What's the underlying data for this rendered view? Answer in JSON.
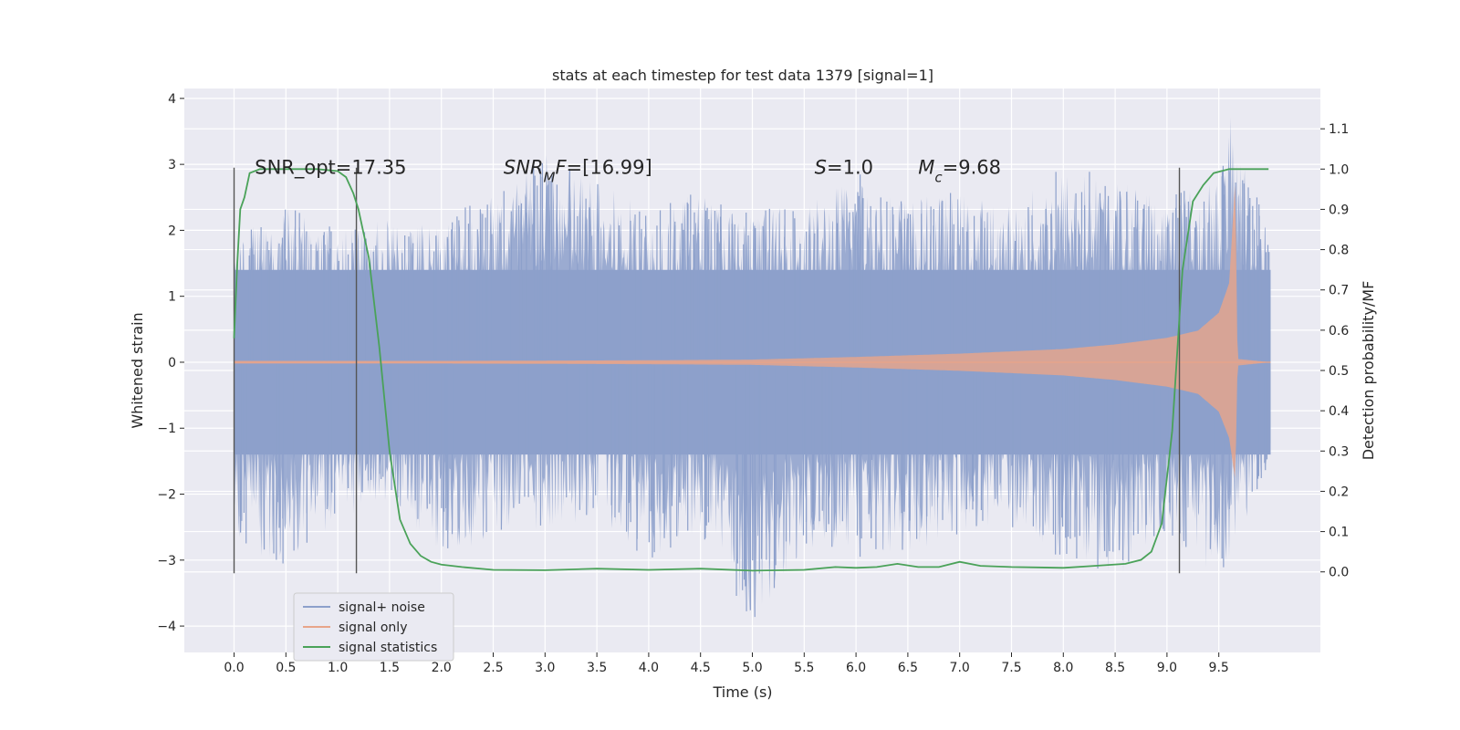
{
  "chart_data": {
    "type": "line",
    "title": "stats at each timestep for test data 1379 [signal=1]",
    "xlabel": "Time (s)",
    "ylabel": "Whitened strain",
    "y2label": "Detection probability/MF",
    "xlim": [
      -0.48,
      10.48
    ],
    "ylim": [
      -4.4,
      4.15
    ],
    "y2lim": [
      -0.2,
      1.2
    ],
    "x_ticks": [
      "0.0",
      "0.5",
      "1.0",
      "1.5",
      "2.0",
      "2.5",
      "3.0",
      "3.5",
      "4.0",
      "4.5",
      "5.0",
      "5.5",
      "6.0",
      "6.5",
      "7.0",
      "7.5",
      "8.0",
      "8.5",
      "9.0",
      "9.5"
    ],
    "y_ticks": [
      "−4",
      "−3",
      "−2",
      "−1",
      "0",
      "1",
      "2",
      "3",
      "4"
    ],
    "y2_ticks": [
      "0.0",
      "0.1",
      "0.2",
      "0.3",
      "0.4",
      "0.5",
      "0.6",
      "0.7",
      "0.8",
      "0.9",
      "1.0",
      "1.1"
    ],
    "grid": true,
    "legend_position": "lower-left",
    "colors": {
      "noise": "#8da0cb",
      "signal": "#e8a58a",
      "stats": "#4aa259",
      "vline": "#555555",
      "background": "#eaeaf2",
      "grid": "#ffffff"
    },
    "series": [
      {
        "name": "signal+ noise",
        "axis": "left",
        "x_range": [
          0.0,
          10.0
        ],
        "typical_band": [
          -1.4,
          1.4
        ],
        "envelope_upper": [
          [
            0.0,
            1.9
          ],
          [
            0.5,
            2.4
          ],
          [
            1.0,
            2.0
          ],
          [
            1.5,
            2.2
          ],
          [
            2.0,
            2.2
          ],
          [
            2.5,
            2.6
          ],
          [
            3.0,
            3.2
          ],
          [
            3.5,
            2.8
          ],
          [
            4.0,
            2.3
          ],
          [
            4.5,
            2.6
          ],
          [
            5.0,
            2.3
          ],
          [
            5.5,
            2.4
          ],
          [
            6.0,
            2.9
          ],
          [
            6.5,
            2.5
          ],
          [
            7.0,
            2.6
          ],
          [
            7.5,
            2.4
          ],
          [
            8.0,
            3.0
          ],
          [
            8.5,
            2.8
          ],
          [
            9.0,
            2.6
          ],
          [
            9.5,
            2.8
          ],
          [
            9.6,
            3.8
          ],
          [
            10.0,
            1.9
          ]
        ],
        "envelope_lower": [
          [
            0.0,
            -2.8
          ],
          [
            0.5,
            -3.1
          ],
          [
            1.0,
            -2.4
          ],
          [
            1.5,
            -2.2
          ],
          [
            2.0,
            -2.9
          ],
          [
            2.5,
            -2.7
          ],
          [
            3.0,
            -2.5
          ],
          [
            3.5,
            -2.4
          ],
          [
            4.0,
            -3.0
          ],
          [
            4.5,
            -2.6
          ],
          [
            5.0,
            -4.0
          ],
          [
            5.5,
            -2.8
          ],
          [
            6.0,
            -3.0
          ],
          [
            6.5,
            -2.9
          ],
          [
            7.0,
            -2.6
          ],
          [
            7.5,
            -2.5
          ],
          [
            8.0,
            -3.0
          ],
          [
            8.5,
            -3.3
          ],
          [
            9.0,
            -2.7
          ],
          [
            9.5,
            -3.3
          ],
          [
            10.0,
            -1.6
          ]
        ]
      },
      {
        "name": "signal only",
        "axis": "left",
        "amplitude": [
          [
            0.0,
            0.02
          ],
          [
            2.0,
            0.02
          ],
          [
            4.0,
            0.03
          ],
          [
            5.0,
            0.04
          ],
          [
            6.0,
            0.08
          ],
          [
            7.0,
            0.13
          ],
          [
            8.0,
            0.2
          ],
          [
            8.5,
            0.27
          ],
          [
            9.0,
            0.37
          ],
          [
            9.3,
            0.48
          ],
          [
            9.5,
            0.75
          ],
          [
            9.6,
            1.2
          ],
          [
            9.66,
            2.8
          ],
          [
            9.68,
            0.05
          ],
          [
            10.0,
            0.0
          ]
        ],
        "peak": [
          9.66,
          2.75
        ],
        "trough": [
          9.66,
          -1.8
        ]
      },
      {
        "name": "signal statistics",
        "axis": "right",
        "x": [
          0.0,
          0.03,
          0.06,
          0.1,
          0.15,
          0.25,
          0.4,
          0.6,
          0.8,
          1.0,
          1.08,
          1.15,
          1.2,
          1.3,
          1.4,
          1.5,
          1.6,
          1.7,
          1.8,
          1.9,
          2.0,
          2.2,
          2.5,
          3.0,
          3.5,
          4.0,
          4.5,
          5.0,
          5.5,
          5.8,
          6.0,
          6.2,
          6.4,
          6.6,
          6.8,
          7.0,
          7.2,
          7.5,
          8.0,
          8.3,
          8.6,
          8.75,
          8.85,
          8.95,
          9.05,
          9.15,
          9.25,
          9.35,
          9.45,
          9.6,
          9.8,
          9.98
        ],
        "y": [
          0.58,
          0.76,
          0.9,
          0.93,
          0.99,
          1.0,
          1.0,
          1.0,
          1.0,
          0.995,
          0.98,
          0.94,
          0.9,
          0.78,
          0.56,
          0.3,
          0.13,
          0.07,
          0.04,
          0.025,
          0.018,
          0.012,
          0.005,
          0.004,
          0.008,
          0.005,
          0.008,
          0.003,
          0.005,
          0.012,
          0.01,
          0.012,
          0.02,
          0.012,
          0.012,
          0.025,
          0.015,
          0.012,
          0.01,
          0.015,
          0.02,
          0.03,
          0.05,
          0.12,
          0.35,
          0.75,
          0.92,
          0.96,
          0.99,
          1.0,
          1.0,
          1.0
        ]
      }
    ],
    "vlines": [
      0.0,
      1.18,
      9.12
    ],
    "vline_range": [
      -3.2,
      2.95
    ],
    "annotations": [
      {
        "key": "snr_opt",
        "text": "SNR_opt=17.35",
        "x": 0.2,
        "y": 2.95
      },
      {
        "key": "snr_mf",
        "text": "SNR_MF=[16.99]",
        "x": 2.6,
        "y": 2.95
      },
      {
        "key": "s",
        "text": "S=1.0",
        "x": 5.6,
        "y": 2.95
      },
      {
        "key": "mc",
        "text": "M_c=9.68",
        "x": 6.6,
        "y": 2.95
      }
    ]
  }
}
